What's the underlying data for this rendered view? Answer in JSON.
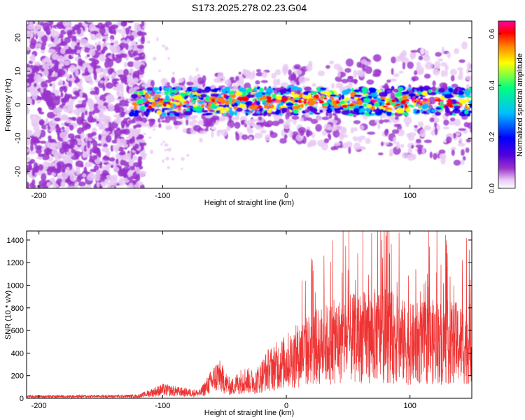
{
  "title": "S173.2025.278.02.23.G04",
  "chart_data": [
    {
      "type": "heatmap",
      "xlabel": "Height of straight line (km)",
      "ylabel": "Frequency (Hz)",
      "xlim": [
        -210,
        150
      ],
      "ylim": [
        -25,
        25
      ],
      "x_ticks": [
        -200,
        -100,
        0,
        100
      ],
      "y_ticks": [
        -20,
        -10,
        0,
        10,
        20
      ],
      "colorbar": {
        "label": "Normalized spectral amplitude",
        "range": [
          0.0,
          0.65
        ],
        "ticks": [
          0.0,
          0.2,
          0.4,
          0.6
        ],
        "colormap": [
          "#ffffff",
          "#e8c8f4",
          "#9932cc",
          "#5000e0",
          "#0000ff",
          "#00c0ff",
          "#00ff80",
          "#ffff00",
          "#ff8000",
          "#ff0000",
          "#ff00a0"
        ]
      },
      "features": {
        "noise_region_x": [
          -210,
          -115
        ],
        "noise_freq_band": [
          -25,
          25
        ],
        "signal_band_center_hz": 0,
        "signal_band_halfwidth_hz": 4,
        "peak_amplitude": 0.65
      }
    },
    {
      "type": "line",
      "xlabel": "Height of straight line (km)",
      "ylabel": "SNR (10 * v/v)",
      "xlim": [
        -210,
        150
      ],
      "ylim": [
        0,
        1480
      ],
      "x_ticks": [
        -200,
        -100,
        0,
        100
      ],
      "y_ticks": [
        0,
        200,
        400,
        600,
        800,
        1000,
        1200,
        1400
      ],
      "series": [
        {
          "name": "SNR",
          "color": "#ee3333",
          "envelope_x": [
            -210,
            -120,
            -100,
            -80,
            -70,
            -55,
            -45,
            -35,
            -25,
            -15,
            0,
            20,
            40,
            60,
            80,
            100,
            120,
            150
          ],
          "envelope_y": [
            25,
            30,
            120,
            80,
            70,
            330,
            150,
            260,
            230,
            400,
            520,
            700,
            800,
            860,
            900,
            760,
            800,
            760
          ]
        }
      ]
    }
  ]
}
